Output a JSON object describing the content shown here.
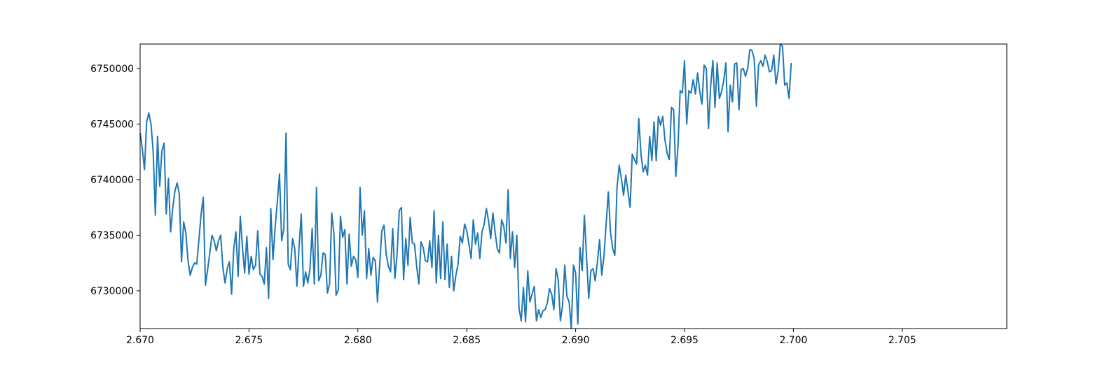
{
  "chart_data": {
    "type": "line",
    "title": "",
    "xlabel": "",
    "ylabel": "",
    "xlim": [
      2.67,
      2.7098
    ],
    "ylim": [
      6726600,
      6752200
    ],
    "grid": false,
    "x_start": 2.67,
    "x_step": 0.0001,
    "x_ticks": [
      2.67,
      2.675,
      2.68,
      2.685,
      2.69,
      2.695,
      2.7,
      2.705
    ],
    "x_tick_labels": [
      "2.670",
      "2.675",
      "2.680",
      "2.685",
      "2.690",
      "2.695",
      "2.700",
      "2.705"
    ],
    "y_ticks": [
      6730000,
      6735000,
      6740000,
      6745000,
      6750000
    ],
    "y_tick_labels": [
      "6730000",
      "6735000",
      "6740000",
      "6745000",
      "6750000"
    ],
    "series": [
      {
        "color": "#1f77b4",
        "values": [
          6744200,
          6742800,
          6740900,
          6745200,
          6746000,
          6745000,
          6742500,
          6736800,
          6743900,
          6739400,
          6742600,
          6743300,
          6736900,
          6740100,
          6735300,
          6737500,
          6739000,
          6739700,
          6738700,
          6732600,
          6736200,
          6735200,
          6732700,
          6731400,
          6732100,
          6732500,
          6732400,
          6734600,
          6736900,
          6738400,
          6730500,
          6731900,
          6733400,
          6735000,
          6734500,
          6733600,
          6734500,
          6735000,
          6732100,
          6730700,
          6732000,
          6732600,
          6729700,
          6733800,
          6735300,
          6731300,
          6736700,
          6733900,
          6731600,
          6734900,
          6731500,
          6733100,
          6731900,
          6732300,
          6735400,
          6731500,
          6731300,
          6730600,
          6733900,
          6729300,
          6737400,
          6732800,
          6735700,
          6738000,
          6740500,
          6734500,
          6735600,
          6744200,
          6732400,
          6731900,
          6734700,
          6733800,
          6730400,
          6734000,
          6736900,
          6730400,
          6731700,
          6730700,
          6732000,
          6735600,
          6730600,
          6739300,
          6730900,
          6731400,
          6733400,
          6733300,
          6729800,
          6730600,
          6737000,
          6735100,
          6729600,
          6730100,
          6736700,
          6734800,
          6735500,
          6730600,
          6735100,
          6732200,
          6733100,
          6732800,
          6731200,
          6739300,
          6735000,
          6737200,
          6731100,
          6733800,
          6731400,
          6733000,
          6732700,
          6729000,
          6732300,
          6735400,
          6735900,
          6733300,
          6732200,
          6731700,
          6735600,
          6731100,
          6733300,
          6737200,
          6737500,
          6731000,
          6734700,
          6732300,
          6736600,
          6734300,
          6734200,
          6732200,
          6730600,
          6734400,
          6733900,
          6732700,
          6732600,
          6734500,
          6732100,
          6737200,
          6730700,
          6735000,
          6731100,
          6736200,
          6731000,
          6734200,
          6730300,
          6733100,
          6730000,
          6731400,
          6732400,
          6734900,
          6734300,
          6736000,
          6735400,
          6734200,
          6732900,
          6736400,
          6734200,
          6735200,
          6732900,
          6735300,
          6736000,
          6737400,
          6736300,
          6734700,
          6737000,
          6735300,
          6733800,
          6733400,
          6736400,
          6735800,
          6734300,
          6739100,
          6732900,
          6735300,
          6732100,
          6735000,
          6728400,
          6727300,
          6730300,
          6727200,
          6731800,
          6729000,
          6729700,
          6730400,
          6727300,
          6728300,
          6727600,
          6728200,
          6728300,
          6728900,
          6730200,
          6729700,
          6728300,
          6732000,
          6731000,
          6727300,
          6728700,
          6732300,
          6729500,
          6729000,
          6726600,
          6732300,
          6731600,
          6727000,
          6733900,
          6731800,
          6736800,
          6733100,
          6729300,
          6731800,
          6732000,
          6730900,
          6732600,
          6734600,
          6731400,
          6733100,
          6736000,
          6738900,
          6735300,
          6733800,
          6733200,
          6739300,
          6741300,
          6740100,
          6738600,
          6740400,
          6739000,
          6737500,
          6742300,
          6741800,
          6741400,
          6745500,
          6742300,
          6740700,
          6741300,
          6740400,
          6743900,
          6741700,
          6745200,
          6741700,
          6745700,
          6744900,
          6745700,
          6743600,
          6742400,
          6741800,
          6746500,
          6746300,
          6740300,
          6743000,
          6748000,
          6747800,
          6750700,
          6745000,
          6748000,
          6747800,
          6749000,
          6747700,
          6749600,
          6747900,
          6746800,
          6750300,
          6750000,
          6744600,
          6748400,
          6750700,
          6746500,
          6750500,
          6747300,
          6747900,
          6748900,
          6750500,
          6744300,
          6748500,
          6747000,
          6750400,
          6750500,
          6746300,
          6749900,
          6750000,
          6749300,
          6750000,
          6751700,
          6751600,
          6750900,
          6746600,
          6750300,
          6750700,
          6750200,
          6751200,
          6750600,
          6749700,
          6749800,
          6751200,
          6748600,
          6749800,
          6752200,
          6752000,
          6748500,
          6748700,
          6747300,
          6750500
        ]
      }
    ]
  }
}
